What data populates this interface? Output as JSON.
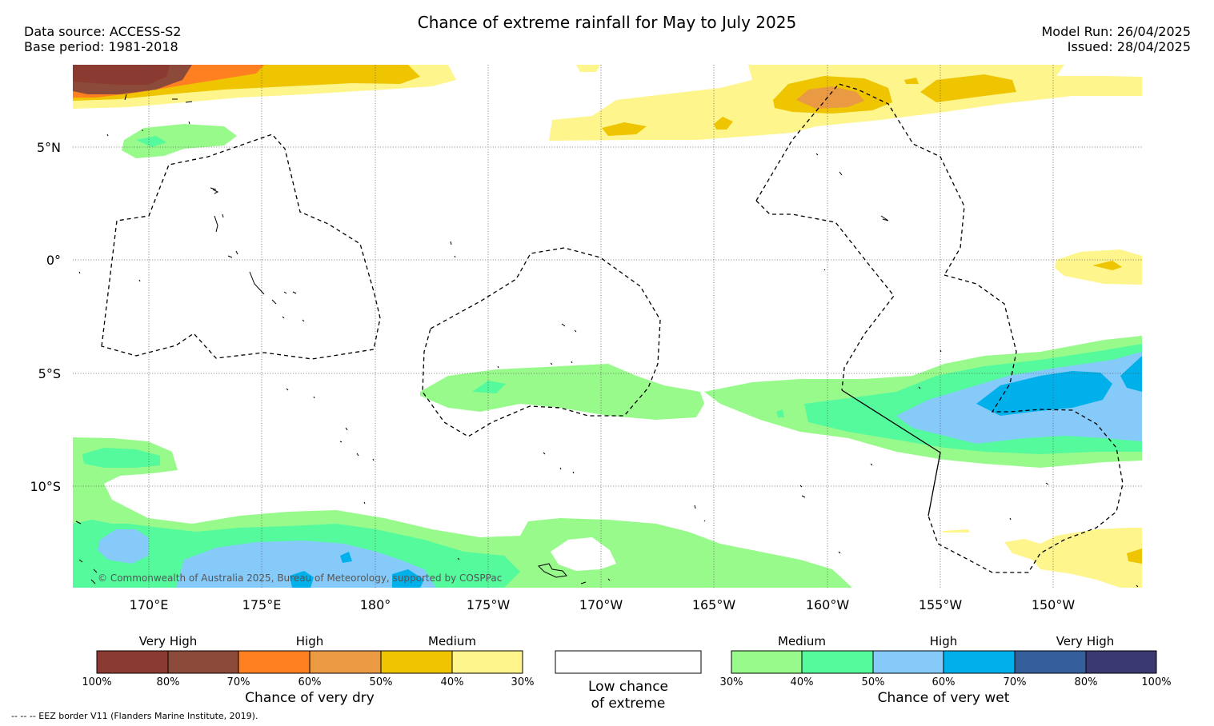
{
  "header": {
    "title": "Chance of extreme rainfall for May to July 2025",
    "data_source": "Data source: ACCESS-S2",
    "base_period": "Base period: 1981-2018",
    "model_run": "Model Run: 26/04/2025",
    "issued": "Issued: 28/04/2025"
  },
  "map": {
    "lat_labels": [
      "5°N",
      "0°",
      "5°S",
      "10°S"
    ],
    "lon_labels": [
      "170°E",
      "175°E",
      "180°",
      "175°W",
      "170°W",
      "165°W",
      "160°W",
      "155°W",
      "150°W"
    ],
    "copyright": "© Commonwealth of Australia 2025, Bureau of Meteorology, supported by COSPPac"
  },
  "legend_dry": {
    "groups": [
      "Very High",
      "High",
      "Medium"
    ],
    "colors": [
      "#8b3a32",
      "#8b4a3a",
      "#ff8020",
      "#eb9a44",
      "#eec500",
      "#fef58c"
    ],
    "ticks": [
      "100%",
      "80%",
      "70%",
      "60%",
      "50%",
      "40%",
      "30%"
    ],
    "caption": "Chance of very dry"
  },
  "legend_low": {
    "line1": "Low chance",
    "line2": "of extreme",
    "color": "#ffffff"
  },
  "legend_wet": {
    "groups": [
      "Medium",
      "High",
      "Very High"
    ],
    "colors": [
      "#99fa8c",
      "#54fa9c",
      "#86cafa",
      "#00b0ea",
      "#355f9b",
      "#3b3a70"
    ],
    "ticks": [
      "30%",
      "40%",
      "50%",
      "60%",
      "70%",
      "80%",
      "100%"
    ],
    "caption": "Chance of very wet"
  },
  "footer": {
    "eez_note": "--  --  -- EEZ border V11 (Flanders Marine Institute, 2019)."
  }
}
